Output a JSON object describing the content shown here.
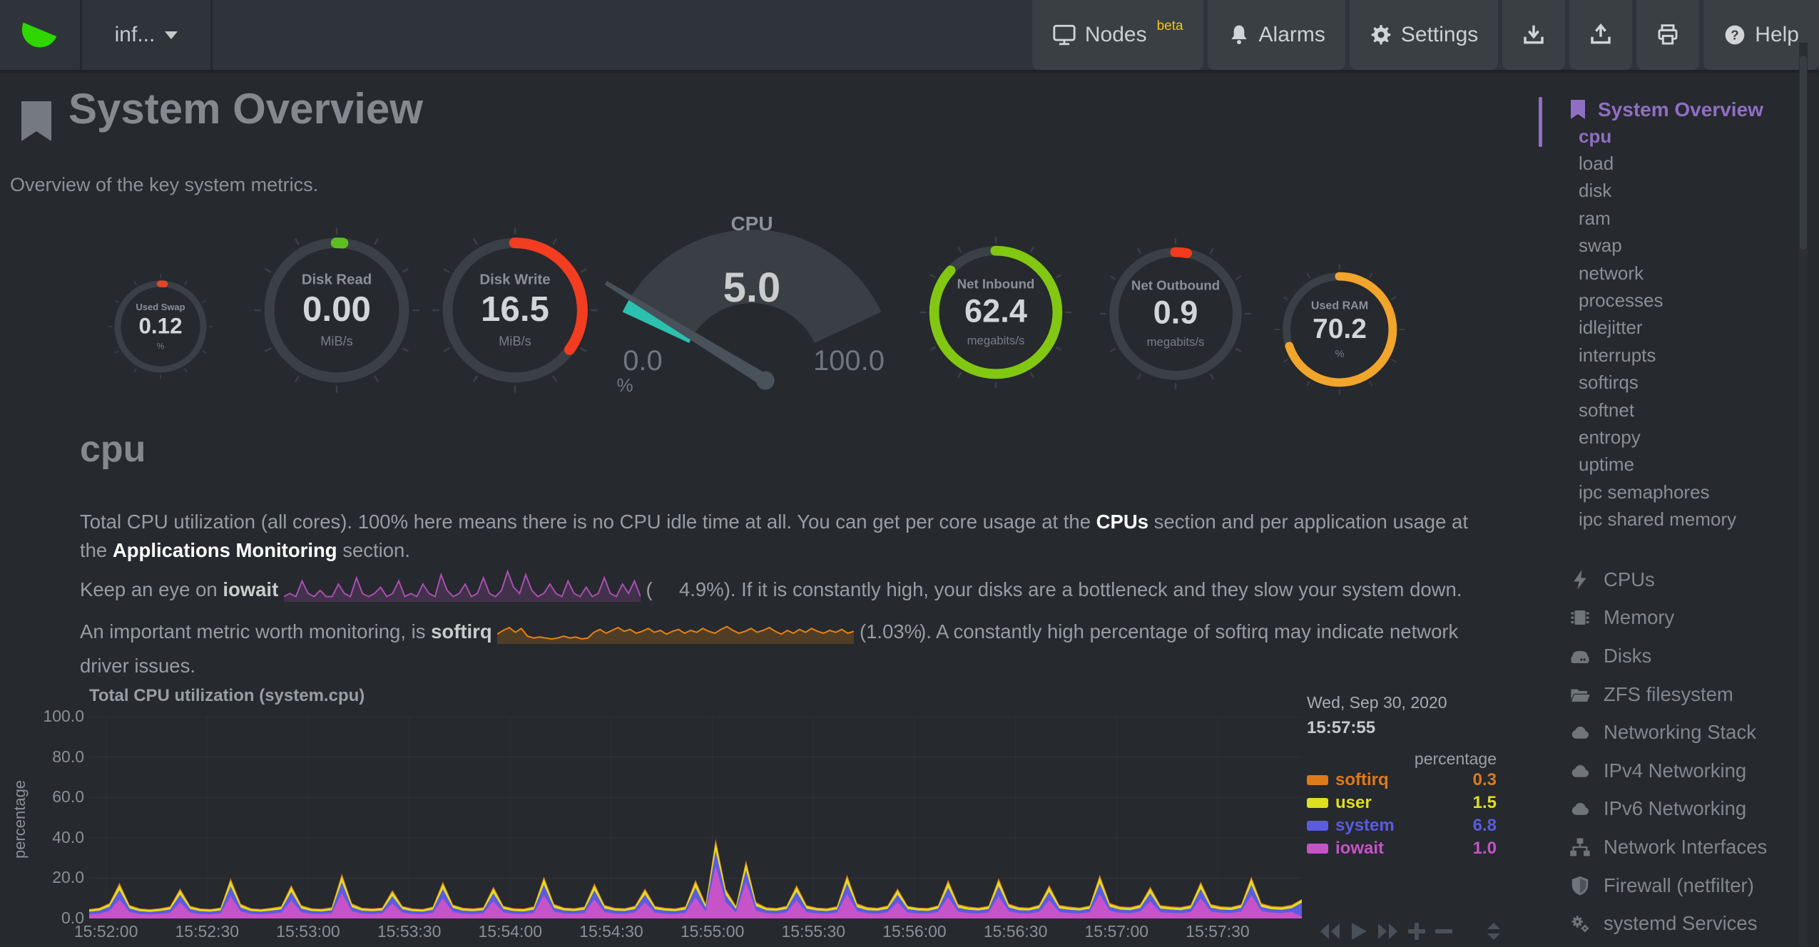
{
  "navbar": {
    "hostname": "inf...",
    "nodes_label": "Nodes",
    "nodes_badge": "beta",
    "alarms_label": "Alarms",
    "settings_label": "Settings",
    "help_label": "Help",
    "icon_buttons": [
      "download-icon",
      "upload-icon",
      "print-icon"
    ]
  },
  "page": {
    "title": "System Overview",
    "subtitle": "Overview of the key system metrics."
  },
  "gauges": [
    {
      "title": "Used Swap",
      "value": "0.12",
      "units": "%",
      "percent": 1.5,
      "color": "#e1462c"
    },
    {
      "title": "Disk Read",
      "value": "0.00",
      "units": "MiB/s",
      "percent": 1.5,
      "color": "#5cbf1f"
    },
    {
      "title": "Disk Write",
      "value": "16.5",
      "units": "MiB/s",
      "percent": 35,
      "color": "#f23d20"
    },
    {
      "title": "Net Inbound",
      "value": "62.4",
      "units": "megabits/s",
      "percent": 87,
      "color": "#82c711"
    },
    {
      "title": "Net Outbound",
      "value": "0.9",
      "units": "megabits/s",
      "percent": 3,
      "color": "#f23a1e"
    },
    {
      "title": "Used RAM",
      "value": "70.2",
      "units": "%",
      "percent": 70,
      "color": "#f2a52b"
    }
  ],
  "cpu_gauge": {
    "title": "CPU",
    "value": "5.0",
    "min": "0.0",
    "max": "100.0",
    "units": "%",
    "percent": 5,
    "arc_color": "#2bc1ae",
    "fan_color": "#3a3f45",
    "needle_color": "#49515b"
  },
  "cpu_section": {
    "heading": "cpu",
    "p1_a": "Total CPU utilization (all cores). 100% here means there is no CPU idle time at all. You can get per core usage at the ",
    "link_cpus": "CPUs",
    "p1_b": " section and per application usage at",
    "p1_c": "the ",
    "link_apps": "Applications Monitoring",
    "p1_d": " section.",
    "p2_a": "Keep an eye on ",
    "p2_bold": "iowait",
    "p2_paren": "(",
    "p2_value": "4.9%",
    "p2_rest": "). If it is constantly high, your disks are a bottleneck and they slow your system down.",
    "p3_a": "An important metric worth monitoring, is ",
    "p3_bold": "softirq",
    "p3_paren": "(",
    "p3_value": "1.03%",
    "p3_rest": "). A constantly high percentage of softirq may indicate network driver issues."
  },
  "chart_controls": {
    "icons": [
      "rewind-icon",
      "play-icon",
      "fast-forward-icon",
      "zoom-in-icon",
      "zoom-out-icon",
      "resize-handle-icon"
    ]
  },
  "sidebar": {
    "accent": "#8f6fc4",
    "heading": "System Overview",
    "active_item": "cpu",
    "items": [
      "cpu",
      "load",
      "disk",
      "ram",
      "swap",
      "network",
      "processes",
      "idlejitter",
      "interrupts",
      "softirqs",
      "softnet",
      "entropy",
      "uptime",
      "ipc semaphores",
      "ipc shared memory"
    ],
    "sections": [
      {
        "icon": "bolt-icon",
        "label": "CPUs"
      },
      {
        "icon": "memory-icon",
        "label": "Memory"
      },
      {
        "icon": "hdd-icon",
        "label": "Disks"
      },
      {
        "icon": "folder-open-icon",
        "label": "ZFS filesystem"
      },
      {
        "icon": "cloud-icon",
        "label": "Networking Stack"
      },
      {
        "icon": "cloud-icon",
        "label": "IPv4 Networking"
      },
      {
        "icon": "cloud-icon",
        "label": "IPv6 Networking"
      },
      {
        "icon": "sitemap-icon",
        "label": "Network Interfaces"
      },
      {
        "icon": "shield-icon",
        "label": "Firewall (netfilter)"
      },
      {
        "icon": "gears-icon",
        "label": "systemd Services"
      }
    ]
  },
  "chart_data": [
    {
      "type": "area",
      "stacked": true,
      "title": "Total CPU utilization (system.cpu)",
      "ylabel": "percentage",
      "ylim": [
        0,
        100
      ],
      "grid": true,
      "legend_position": "right",
      "ytick_labels": [
        "0.0",
        "20.0",
        "40.0",
        "60.0",
        "80.0",
        "100.0"
      ],
      "xtick_labels": [
        "15:52:00",
        "15:52:30",
        "15:53:00",
        "15:53:30",
        "15:54:00",
        "15:54:30",
        "15:55:00",
        "15:55:30",
        "15:56:00",
        "15:56:30",
        "15:57:00",
        "15:57:30"
      ],
      "x_window_seconds": 360,
      "x_first_tick_offset_seconds": 5,
      "x_tick_interval_seconds": 30,
      "legend": {
        "date": "Wed, Sep 30, 2020",
        "time": "15:57:55",
        "units_header": "percentage",
        "entries": [
          {
            "label": "softirq",
            "value": "0.3",
            "color": "#df7a1a"
          },
          {
            "label": "user",
            "value": "1.5",
            "color": "#dfdf20"
          },
          {
            "label": "system",
            "value": "6.8",
            "color": "#5b5be0"
          },
          {
            "label": "iowait",
            "value": "1.0",
            "color": "#c653c8"
          }
        ]
      },
      "series": [
        {
          "name": "iowait",
          "color": "#c653c8",
          "values": [
            2.1,
            2.4,
            3.8,
            9.5,
            3.2,
            2.2,
            2.0,
            2.3,
            2.8,
            8.0,
            3.0,
            2.2,
            2.1,
            2.5,
            11.0,
            3.5,
            2.3,
            2.1,
            2.4,
            2.9,
            9.0,
            3.1,
            2.3,
            2.2,
            2.6,
            12.5,
            3.6,
            2.4,
            2.2,
            2.5,
            7.5,
            2.9,
            2.2,
            2.1,
            2.7,
            10.0,
            3.3,
            2.4,
            2.2,
            2.6,
            8.5,
            3.0,
            2.3,
            2.2,
            2.8,
            11.5,
            3.4,
            2.5,
            2.3,
            2.7,
            9.5,
            3.2,
            2.4,
            2.3,
            3.0,
            8.0,
            2.9,
            2.4,
            2.2,
            2.8,
            10.5,
            3.5,
            26.0,
            8.0,
            3.0,
            18.0,
            4.0,
            2.6,
            2.4,
            3.0,
            9.0,
            3.1,
            2.5,
            2.3,
            2.9,
            12.0,
            3.6,
            2.6,
            2.4,
            3.1,
            8.0,
            3.0,
            2.5,
            2.4,
            3.2,
            10.5,
            3.4,
            2.7,
            2.5,
            3.0,
            11.0,
            3.6,
            2.6,
            2.5,
            3.3,
            9.0,
            3.2,
            2.7,
            2.5,
            3.1,
            12.0,
            3.8,
            2.8,
            2.6,
            3.4,
            8.5,
            3.1,
            2.8,
            2.6,
            3.2,
            10.0,
            3.5,
            2.8,
            2.7,
            3.5,
            11.5,
            3.7,
            2.9,
            2.7,
            3.3,
            1.0
          ]
        },
        {
          "name": "system",
          "color": "#5b5be0",
          "values": [
            1.3,
            1.5,
            2.0,
            4.5,
            1.8,
            1.4,
            1.3,
            1.4,
            1.6,
            3.8,
            1.7,
            1.4,
            1.3,
            1.5,
            5.0,
            1.9,
            1.4,
            1.3,
            1.5,
            1.6,
            4.2,
            1.8,
            1.4,
            1.3,
            1.5,
            5.5,
            2.0,
            1.5,
            1.4,
            1.5,
            3.6,
            1.7,
            1.4,
            1.3,
            1.6,
            4.6,
            1.9,
            1.5,
            1.4,
            1.5,
            4.0,
            1.7,
            1.4,
            1.3,
            1.6,
            5.2,
            1.9,
            1.5,
            1.4,
            1.6,
            4.4,
            1.8,
            1.5,
            1.4,
            1.7,
            3.8,
            1.7,
            1.5,
            1.4,
            1.6,
            4.8,
            1.9,
            7.5,
            3.6,
            1.7,
            6.0,
            2.1,
            1.5,
            1.4,
            1.7,
            4.2,
            1.8,
            1.5,
            1.4,
            1.6,
            5.4,
            2.0,
            1.5,
            1.5,
            1.7,
            3.8,
            1.7,
            1.5,
            1.4,
            1.7,
            4.8,
            1.9,
            1.6,
            1.5,
            1.7,
            5.0,
            1.9,
            1.5,
            1.5,
            1.8,
            4.2,
            1.8,
            1.6,
            1.5,
            1.7,
            5.4,
            2.0,
            1.6,
            1.5,
            1.8,
            4.0,
            1.8,
            1.6,
            1.5,
            1.8,
            4.6,
            1.9,
            1.6,
            1.5,
            1.8,
            5.2,
            2.0,
            1.7,
            1.6,
            1.8,
            6.8
          ]
        },
        {
          "name": "user",
          "color": "#dfdf20",
          "values": [
            0.9,
            1.0,
            1.3,
            2.6,
            1.2,
            1.0,
            0.9,
            1.0,
            1.1,
            2.2,
            1.1,
            1.0,
            0.9,
            1.0,
            2.8,
            1.3,
            1.0,
            0.9,
            1.0,
            1.1,
            2.4,
            1.2,
            1.0,
            0.9,
            1.0,
            3.0,
            1.3,
            1.0,
            1.0,
            1.0,
            2.1,
            1.1,
            1.0,
            0.9,
            1.1,
            2.6,
            1.2,
            1.0,
            1.0,
            1.0,
            2.3,
            1.1,
            1.0,
            1.0,
            1.1,
            2.9,
            1.3,
            1.0,
            1.0,
            1.1,
            2.5,
            1.2,
            1.0,
            1.0,
            1.1,
            2.2,
            1.1,
            1.0,
            1.0,
            1.1,
            2.7,
            1.3,
            4.2,
            2.1,
            1.1,
            3.4,
            1.4,
            1.0,
            1.0,
            1.1,
            2.4,
            1.2,
            1.0,
            1.0,
            1.1,
            3.0,
            1.3,
            1.1,
            1.0,
            1.1,
            2.2,
            1.1,
            1.0,
            1.0,
            1.1,
            2.7,
            1.2,
            1.1,
            1.0,
            1.1,
            2.8,
            1.3,
            1.1,
            1.0,
            1.2,
            2.4,
            1.2,
            1.1,
            1.0,
            1.1,
            3.0,
            1.3,
            1.1,
            1.1,
            1.2,
            2.3,
            1.2,
            1.1,
            1.1,
            1.2,
            2.6,
            1.2,
            1.1,
            1.1,
            1.2,
            2.9,
            1.3,
            1.1,
            1.1,
            1.2,
            1.5
          ]
        },
        {
          "name": "softirq",
          "color": "#df7a1a",
          "values": [
            0.4,
            0.4,
            0.5,
            1.1,
            0.5,
            0.4,
            0.4,
            0.4,
            0.5,
            0.9,
            0.5,
            0.4,
            0.4,
            0.4,
            1.2,
            0.6,
            0.4,
            0.4,
            0.4,
            0.5,
            1.0,
            0.5,
            0.4,
            0.4,
            0.5,
            1.3,
            0.6,
            0.4,
            0.4,
            0.4,
            0.9,
            0.5,
            0.4,
            0.4,
            0.5,
            1.1,
            0.5,
            0.4,
            0.4,
            0.5,
            1.0,
            0.5,
            0.4,
            0.4,
            0.5,
            1.2,
            0.6,
            0.4,
            0.4,
            0.5,
            1.1,
            0.5,
            0.4,
            0.4,
            0.5,
            0.9,
            0.5,
            0.4,
            0.4,
            0.5,
            1.2,
            0.6,
            1.8,
            0.9,
            0.5,
            1.5,
            0.6,
            0.5,
            0.4,
            0.5,
            1.0,
            0.5,
            0.4,
            0.4,
            0.5,
            1.3,
            0.6,
            0.5,
            0.4,
            0.5,
            0.9,
            0.5,
            0.4,
            0.4,
            0.5,
            1.2,
            0.6,
            0.5,
            0.4,
            0.5,
            1.2,
            0.6,
            0.5,
            0.4,
            0.5,
            1.0,
            0.5,
            0.5,
            0.4,
            0.5,
            1.3,
            0.6,
            0.5,
            0.5,
            0.5,
            1.0,
            0.5,
            0.5,
            0.5,
            0.5,
            1.1,
            0.5,
            0.5,
            0.5,
            0.5,
            1.2,
            0.6,
            0.5,
            0.5,
            0.5,
            0.3
          ]
        }
      ]
    },
    {
      "type": "area",
      "name": "iowait-inline-sparkline",
      "color": "#a94fb0",
      "ymax": 10,
      "values": [
        1,
        2,
        1,
        6,
        2,
        1,
        3,
        1,
        1,
        5,
        2,
        1,
        7,
        2,
        1,
        2,
        4,
        1,
        2,
        6,
        1,
        2,
        1,
        5,
        2,
        1,
        8,
        3,
        1,
        2,
        5,
        1,
        2,
        7,
        2,
        1,
        3,
        9,
        4,
        2,
        8,
        3,
        1,
        2,
        5,
        2,
        1,
        6,
        2,
        1,
        4,
        1,
        2,
        7,
        2,
        1,
        5,
        2,
        6,
        1
      ]
    },
    {
      "type": "area",
      "name": "softirq-inline-sparkline",
      "color": "#e8820e",
      "ymax": 3,
      "values": [
        0.8,
        1.2,
        1.5,
        1.0,
        1.4,
        0.6,
        0.4,
        0.5,
        0.4,
        0.3,
        0.4,
        0.6,
        0.4,
        0.5,
        0.3,
        0.4,
        1.0,
        1.3,
        0.9,
        1.2,
        1.5,
        1.1,
        1.3,
        0.9,
        1.1,
        1.4,
        1.0,
        1.2,
        0.8,
        1.1,
        1.3,
        0.9,
        1.2,
        1.0,
        1.4,
        1.1,
        0.9,
        1.3,
        1.6,
        1.2,
        0.9,
        1.1,
        1.4,
        1.0,
        1.2,
        1.5,
        1.1,
        0.8,
        1.2,
        0.9,
        1.3,
        1.0,
        1.4,
        1.1,
        0.9,
        1.2,
        1.0,
        1.3,
        0.9,
        1.1
      ]
    }
  ]
}
